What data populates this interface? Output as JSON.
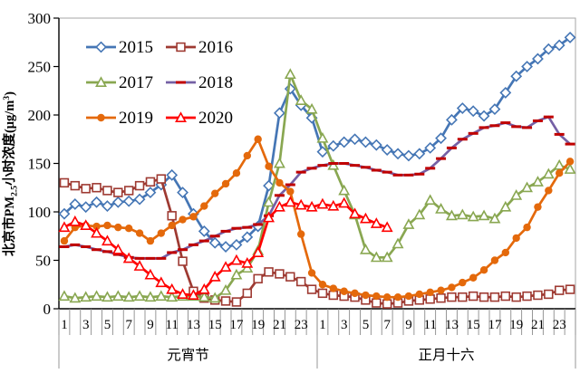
{
  "chart_data": {
    "type": "line",
    "title": "",
    "ylabel_parts": {
      "prefix": "北京市PM",
      "sub": "2.5",
      "mid": "小时浓度(μg/m",
      "sup": "3",
      "suffix": ")"
    },
    "ylim": [
      0,
      300
    ],
    "yticks": [
      0,
      50,
      100,
      150,
      200,
      250,
      300
    ],
    "grid": false,
    "x_categories_per_day": 24,
    "x_tick_labels": [
      "1",
      "3",
      "5",
      "7",
      "9",
      "11",
      "13",
      "15",
      "17",
      "19",
      "21",
      "23"
    ],
    "day_labels": [
      "元宵节",
      "正月十六"
    ],
    "legend": {
      "position": "top-left-inside",
      "columns": 2,
      "rows": [
        [
          "2015",
          "2016"
        ],
        [
          "2017",
          "2018"
        ],
        [
          "2019",
          "2020"
        ]
      ]
    },
    "axis_color": "#000000",
    "tick_color": "#8c8c8c",
    "border_color": "#a6a6a6",
    "series": [
      {
        "name": "2015",
        "color": "#4576b5",
        "marker": "diamond-open",
        "values": [
          98,
          108,
          105,
          110,
          106,
          110,
          111,
          113,
          120,
          128,
          138,
          120,
          98,
          80,
          68,
          64,
          66,
          74,
          85,
          127,
          202,
          227,
          210,
          197,
          162,
          168,
          172,
          175,
          172,
          169,
          164,
          160,
          158,
          160,
          166,
          176,
          195,
          207,
          204,
          199,
          206,
          223,
          240,
          250,
          258,
          268,
          272,
          280
        ]
      },
      {
        "name": "2016",
        "color": "#9e3a32",
        "marker": "square-open",
        "values": [
          130,
          127,
          124,
          125,
          122,
          120,
          122,
          127,
          131,
          134,
          96,
          49,
          18,
          11,
          9,
          8,
          7,
          16,
          31,
          38,
          36,
          33,
          28,
          20,
          16,
          14,
          13,
          12,
          9,
          6,
          5,
          6,
          8,
          9,
          10,
          11,
          12,
          12,
          13,
          12,
          12,
          13,
          12,
          13,
          14,
          15,
          19,
          20
        ]
      },
      {
        "name": "2017",
        "color": "#89a751",
        "marker": "triangle-open",
        "values": [
          13,
          11,
          12,
          13,
          12,
          13,
          12,
          13,
          12,
          13,
          12,
          13,
          13,
          12,
          11,
          19,
          35,
          42,
          60,
          110,
          150,
          242,
          215,
          206,
          176,
          148,
          122,
          97,
          61,
          53,
          53,
          67,
          87,
          97,
          112,
          103,
          96,
          97,
          95,
          96,
          93,
          105,
          117,
          125,
          131,
          139,
          148,
          144
        ]
      },
      {
        "name": "2018",
        "color": "#7560a5",
        "marker": "dash",
        "marker_color": "#c00000",
        "values": [
          64,
          66,
          64,
          61,
          59,
          56,
          53,
          52,
          52,
          52,
          58,
          61,
          66,
          70,
          75,
          80,
          83,
          84,
          87,
          96,
          117,
          128,
          141,
          145,
          148,
          150,
          150,
          148,
          146,
          143,
          141,
          138,
          138,
          139,
          145,
          155,
          166,
          175,
          181,
          187,
          189,
          192,
          188,
          187,
          194,
          198,
          180,
          170
        ]
      },
      {
        "name": "2019",
        "color": "#e4690b",
        "marker": "circle-filled",
        "values": [
          70,
          84,
          86,
          85,
          86,
          84,
          83,
          78,
          70,
          78,
          86,
          92,
          95,
          106,
          119,
          129,
          140,
          158,
          175,
          147,
          130,
          121,
          77,
          37,
          25,
          21,
          18,
          16,
          14,
          13,
          12,
          12,
          13,
          15,
          17,
          19,
          22,
          27,
          32,
          40,
          50,
          58,
          73,
          84,
          105,
          122,
          140,
          152
        ]
      },
      {
        "name": "2020",
        "color": "#ff0000",
        "marker": "triangle-open",
        "values": [
          84,
          90,
          86,
          78,
          70,
          61,
          52,
          44,
          35,
          27,
          20,
          15,
          14,
          20,
          33,
          43,
          50,
          47,
          58,
          94,
          105,
          110,
          107,
          105,
          108,
          106,
          109,
          98,
          93,
          88,
          84
        ]
      }
    ]
  }
}
